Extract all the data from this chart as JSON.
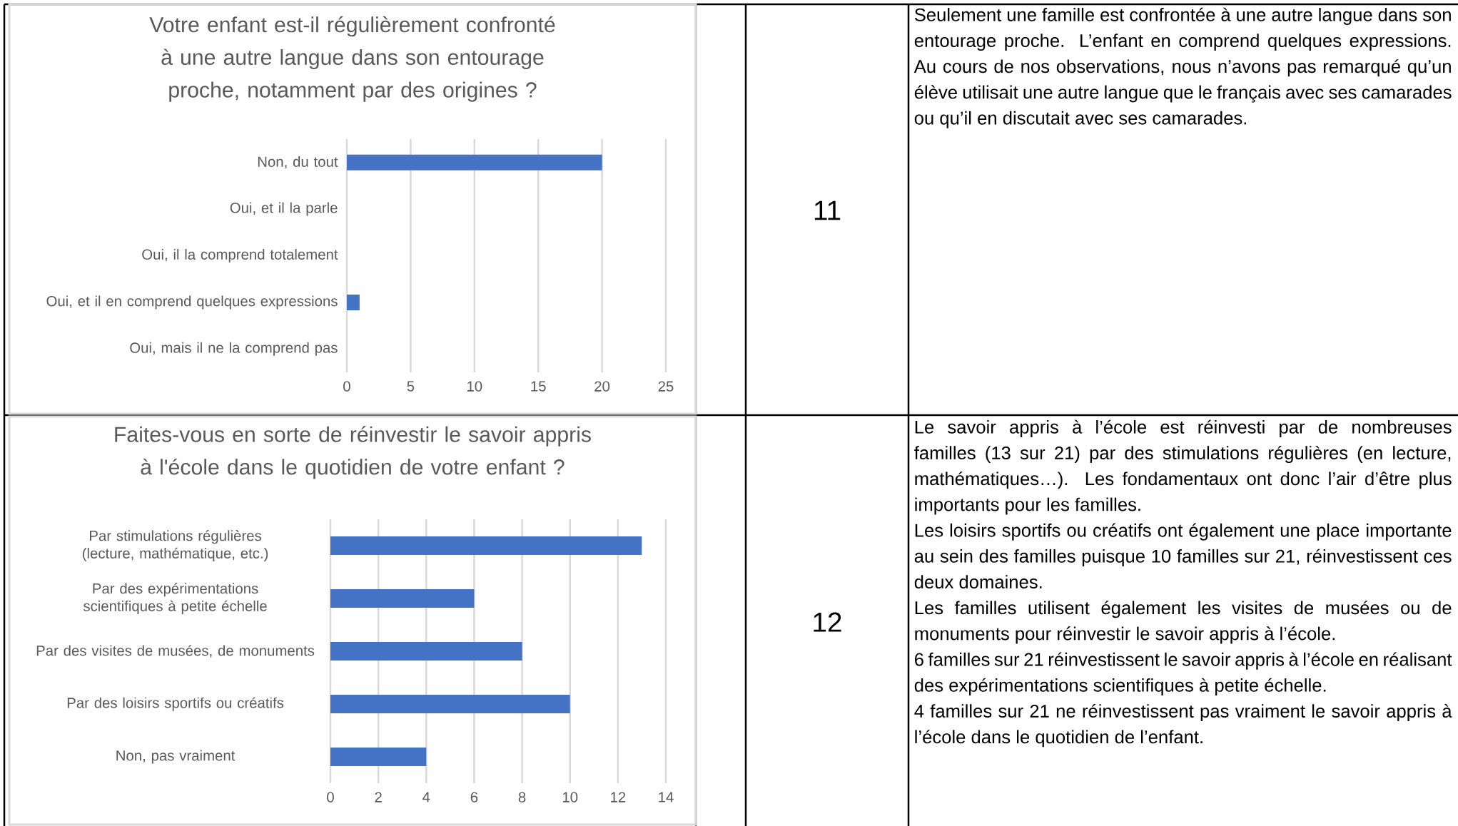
{
  "chart_data": [
    {
      "type": "bar",
      "orientation": "horizontal",
      "title": "Votre enfant est-il régulièrement confronté à une autre langue dans son entourage proche, notamment par des origines ?",
      "categories": [
        "Non, du tout",
        "Oui, et il la parle",
        "Oui, il la comprend totalement",
        "Oui, et il en comprend quelques expressions",
        "Oui, mais il ne la comprend pas"
      ],
      "values": [
        20,
        0,
        0,
        1,
        0
      ],
      "color": "#4472c4",
      "xlim": [
        0,
        25
      ],
      "xticks": [
        0,
        5,
        10,
        15,
        20,
        25
      ],
      "grid": "x"
    },
    {
      "type": "other",
      "annotations": [
        "11",
        "Seulement une famille est confrontée à une autre langue dans son entourage proche. L’enfant en comprend quelques expressions. Au cours de nos observations, nous n’avons pas remarqué qu’un élève utilisait une autre langue que le français avec ses camarades ou qu’il en discutait avec ses camarades."
      ]
    },
    {
      "type": "bar",
      "orientation": "horizontal",
      "title": "Faites-vous en sorte de réinvestir le savoir appris à l'école dans le quotidien de votre enfant ?",
      "categories": [
        "Par stimulations régulières (lecture, mathématique, etc.)",
        "Par des expérimentations scientifiques à petite échelle",
        "Par des visites de musées, de monuments",
        "Par des loisirs sportifs ou créatifs",
        "Non, pas vraiment"
      ],
      "values": [
        13,
        6,
        8,
        10,
        4
      ],
      "color": "#4472c4",
      "xlim": [
        0,
        14
      ],
      "xticks": [
        0,
        2,
        4,
        6,
        8,
        10,
        12,
        14
      ],
      "grid": "x"
    },
    {
      "type": "other",
      "annotations": [
        "12",
        "Le savoir appris à l’école est réinvesti par de nombreuses familles (13 sur 21) par des stimulations régulières (en lecture, mathématiques…). Les fondamentaux ont donc l’air d’être plus importants pour les familles.",
        "Les loisirs sportifs ou créatifs ont également une place importante au sein des familles puisque 10 familles sur 21, réinvestissent ces deux domaines.",
        "Les familles utilisent également les visites de musées ou de monuments pour réinvestir le savoir appris à l’école.",
        "6 familles sur 21 réinvestissent le savoir appris à l’école en réalisant des expérimentations scientifiques à petite échelle.",
        "4 familles sur 21 ne réinvestissent pas vraiment le savoir appris à l’école dans le quotidien de l’enfant."
      ]
    }
  ]
}
